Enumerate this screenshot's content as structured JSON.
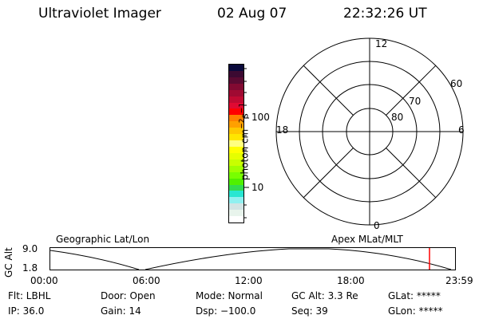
{
  "header": {
    "instrument": "Ultraviolet Imager",
    "date": "02 Aug 07",
    "time": "22:32:26 UT"
  },
  "colorbar": {
    "unit_label": "photon cm",
    "unit_exp1": "−2",
    "unit_mid": "s",
    "unit_exp2": "−1",
    "ticks": [
      "100",
      "10"
    ],
    "colors": [
      "#0a0a3c",
      "#3c0a32",
      "#5a0a32",
      "#820a32",
      "#a00a32",
      "#c00a32",
      "#e00a32",
      "#ff0000",
      "#ff8000",
      "#ffa000",
      "#ffc800",
      "#ffe600",
      "#ffff80",
      "#ffff00",
      "#e6ff00",
      "#c8ff00",
      "#a0ff00",
      "#78ff00",
      "#50f000",
      "#32dc50",
      "#28e6d2",
      "#90f0f0",
      "#d2e4e4",
      "#e8f4ec",
      "#ffffff"
    ]
  },
  "polar": {
    "mlt_labels": {
      "top": "12",
      "right": "6",
      "bottom": "0",
      "left": "18"
    },
    "lat_labels": [
      "60",
      "70",
      "80"
    ]
  },
  "timeline": {
    "left_label": "Geographic Lat/Lon",
    "right_label": "Apex MLat/MLT",
    "y_axis_label": "GC Alt",
    "y_ticks": [
      "9.0",
      "1.8"
    ],
    "x_ticks": [
      "00:00",
      "06:00",
      "12:00",
      "18:00",
      "23:59"
    ],
    "current_time_marker": "22:32",
    "marker_color": "#ff0000"
  },
  "status": {
    "row1": [
      "Flt: LBHL",
      "Door: Open",
      "Mode: Normal",
      "GC Alt: 3.3 Re",
      "GLat: *****"
    ],
    "row2": [
      "IP: 36.0",
      "Gain: 14",
      "Dsp: −100.0",
      "Seq: 39",
      "GLon: *****"
    ]
  }
}
